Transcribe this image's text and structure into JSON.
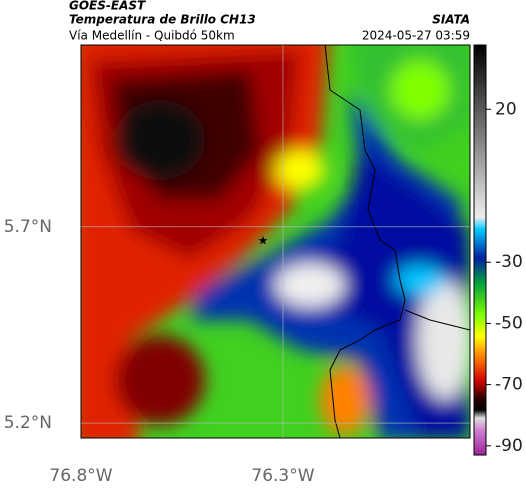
{
  "header": {
    "satellite": "GOES-EAST",
    "product": "Temperatura de Brillo CH13",
    "route": "Vía Medellín - Quibdó 50km",
    "source": "SIATA",
    "datetime": "2024-05-27 03:59"
  },
  "map": {
    "lon_range": [
      -76.8,
      -75.837
    ],
    "lat_range": [
      5.162,
      6.163
    ],
    "lon_ticks": [
      {
        "value": -76.8,
        "label": "76.8°W"
      },
      {
        "value": -76.3,
        "label": "76.3°W"
      }
    ],
    "lat_ticks": [
      {
        "value": 5.7,
        "label": "5.7°N"
      },
      {
        "value": 5.2,
        "label": "5.2°N"
      }
    ]
  },
  "colorbar": {
    "range": [
      41,
      -93
    ],
    "ticks": [
      20,
      -30,
      -50,
      -70,
      -90
    ]
  }
}
